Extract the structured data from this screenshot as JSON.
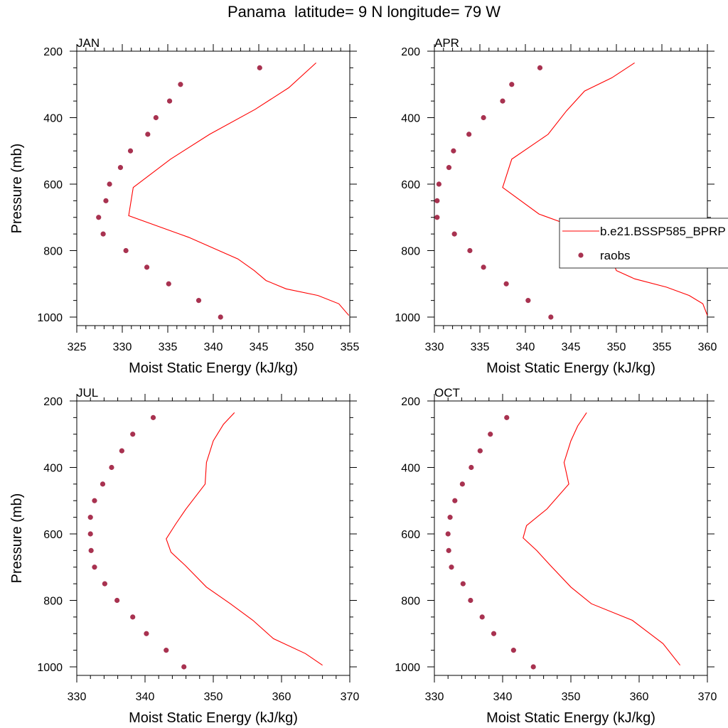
{
  "title": "Panama  latitude= 9 N longitude= 79 W",
  "colors": {
    "model_line": "#ff0000",
    "raobs_marker": "#a83250"
  },
  "chart_data": [
    {
      "type": "scatter",
      "panel_label": "JAN",
      "xlabel": "Moist Static Energy (kJ/kg)",
      "ylabel": "Pressure (mb)",
      "xlim": [
        325,
        355
      ],
      "ylim": [
        200,
        1000
      ],
      "y_inverted": true,
      "xticks": [
        325,
        330,
        335,
        340,
        345,
        350,
        355
      ],
      "yticks": [
        200,
        400,
        600,
        800,
        1000
      ],
      "legend": null,
      "series": [
        {
          "kind": "line",
          "color": "#ff0000",
          "x": [
            351.3,
            348.3,
            344.6,
            339.6,
            335.3,
            331.2,
            330.7,
            337.3,
            342.7,
            344.5,
            345.8,
            348.0,
            351.5,
            353.8,
            354.9
          ],
          "y": [
            235,
            310,
            375,
            450,
            525,
            610,
            695,
            760,
            825,
            860,
            890,
            915,
            935,
            960,
            995
          ]
        },
        {
          "kind": "points",
          "color": "#a83250",
          "x": [
            345.1,
            336.4,
            335.2,
            333.7,
            332.8,
            330.9,
            329.8,
            328.6,
            328.2,
            327.4,
            327.9,
            330.4,
            332.7,
            335.1,
            338.4,
            340.8
          ],
          "y": [
            250,
            300,
            350,
            400,
            450,
            500,
            550,
            600,
            650,
            700,
            750,
            800,
            850,
            900,
            950,
            1000
          ]
        }
      ]
    },
    {
      "type": "scatter",
      "panel_label": "APR",
      "xlabel": "Moist Static Energy (kJ/kg)",
      "ylabel": "",
      "xlim": [
        330,
        360
      ],
      "ylim": [
        200,
        1000
      ],
      "y_inverted": true,
      "xticks": [
        330,
        335,
        340,
        345,
        350,
        355,
        360
      ],
      "yticks": [
        200,
        400,
        600,
        800,
        1000
      ],
      "legend": {
        "position": "right",
        "entries": [
          "b.e21.BSSP585_BPRP",
          "raobs"
        ]
      },
      "series": [
        {
          "name": "b.e21.BSSP585_BPRP",
          "kind": "line",
          "color": "#ff0000",
          "x": [
            352.0,
            349.5,
            346.5,
            344.5,
            342.5,
            338.5,
            337.5,
            341.5,
            345.0,
            348.5,
            350.0,
            352.0,
            355.5,
            358.0,
            359.5,
            360.0
          ],
          "y": [
            235,
            280,
            320,
            380,
            450,
            525,
            610,
            690,
            725,
            760,
            860,
            885,
            910,
            935,
            960,
            995
          ]
        },
        {
          "name": "raobs",
          "kind": "points",
          "color": "#a83250",
          "x": [
            341.6,
            338.5,
            337.5,
            335.4,
            333.8,
            332.1,
            331.6,
            330.5,
            330.3,
            330.3,
            332.2,
            333.9,
            335.4,
            337.9,
            340.3,
            342.8
          ],
          "y": [
            250,
            300,
            350,
            400,
            450,
            500,
            550,
            600,
            650,
            700,
            750,
            800,
            850,
            900,
            950,
            1000
          ]
        }
      ]
    },
    {
      "type": "scatter",
      "panel_label": "JUL",
      "xlabel": "Moist Static Energy (kJ/kg)",
      "ylabel": "Pressure (mb)",
      "xlim": [
        330,
        370
      ],
      "ylim": [
        200,
        1000
      ],
      "y_inverted": true,
      "xticks": [
        330,
        340,
        350,
        360,
        370
      ],
      "yticks": [
        200,
        400,
        600,
        800,
        1000
      ],
      "legend": null,
      "series": [
        {
          "kind": "line",
          "color": "#ff0000",
          "x": [
            353.1,
            351.5,
            350.0,
            349.0,
            348.8,
            346.0,
            344.5,
            343.1,
            343.8,
            345.9,
            349.0,
            352.5,
            355.8,
            358.8,
            363.5,
            366.0
          ],
          "y": [
            235,
            270,
            320,
            385,
            450,
            525,
            570,
            615,
            655,
            695,
            760,
            810,
            860,
            915,
            960,
            995
          ]
        },
        {
          "kind": "points",
          "color": "#a83250",
          "x": [
            341.2,
            338.2,
            336.6,
            335.1,
            333.8,
            332.6,
            332.0,
            332.0,
            332.1,
            332.6,
            334.1,
            335.9,
            338.2,
            340.2,
            343.1,
            345.7
          ],
          "y": [
            250,
            300,
            350,
            400,
            450,
            500,
            550,
            600,
            650,
            700,
            750,
            800,
            850,
            900,
            950,
            1000
          ]
        }
      ]
    },
    {
      "type": "scatter",
      "panel_label": "OCT",
      "xlabel": "Moist Static Energy (kJ/kg)",
      "ylabel": "",
      "xlim": [
        330,
        370
      ],
      "ylim": [
        200,
        1000
      ],
      "y_inverted": true,
      "xticks": [
        330,
        340,
        350,
        360,
        370
      ],
      "yticks": [
        200,
        400,
        600,
        800,
        1000
      ],
      "legend": null,
      "series": [
        {
          "kind": "line",
          "color": "#ff0000",
          "x": [
            352.3,
            351.0,
            350.0,
            349.0,
            349.7,
            346.5,
            343.5,
            343.0,
            345.0,
            347.0,
            350.0,
            353.0,
            359.0,
            363.5,
            366.0
          ],
          "y": [
            235,
            275,
            320,
            385,
            450,
            525,
            575,
            612,
            650,
            695,
            760,
            810,
            860,
            930,
            995
          ]
        },
        {
          "kind": "points",
          "color": "#a83250",
          "x": [
            340.6,
            338.2,
            336.7,
            335.4,
            334.1,
            333.0,
            332.3,
            332.0,
            332.1,
            332.5,
            334.2,
            335.3,
            337.0,
            338.7,
            341.6,
            344.5
          ],
          "y": [
            250,
            300,
            350,
            400,
            450,
            500,
            550,
            600,
            650,
            700,
            750,
            800,
            850,
            900,
            950,
            1000
          ]
        }
      ]
    }
  ]
}
